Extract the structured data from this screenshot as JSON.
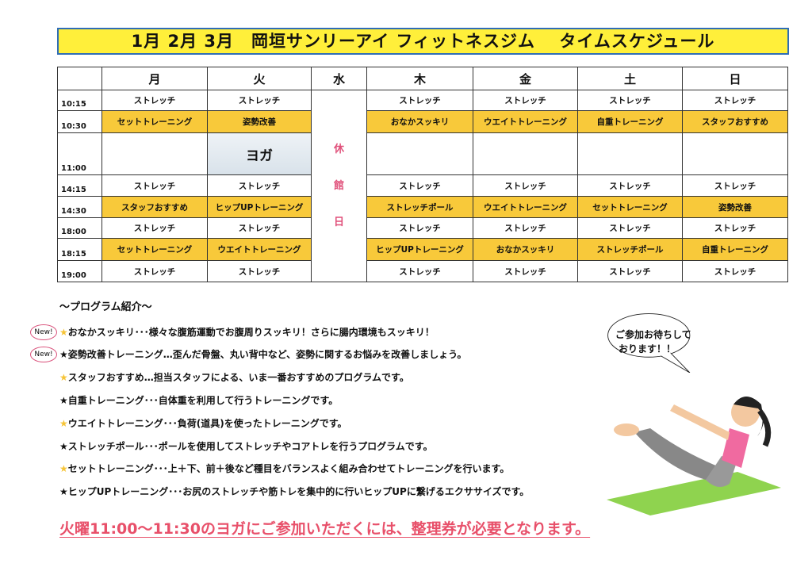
{
  "title": "1月 2月 3月　岡垣サンリーアイ フィットネスジム　 タイムスケジュール",
  "days": [
    "月",
    "火",
    "水",
    "木",
    "金",
    "土",
    "日"
  ],
  "closed_text": [
    "休",
    "館",
    "日"
  ],
  "rows": [
    {
      "time": "10:15",
      "cells": [
        "ストレッチ",
        "ストレッチ",
        "ストレッチ",
        "ストレッチ",
        "ストレッチ",
        "ストレッチ"
      ],
      "highlight": false
    },
    {
      "time": "10:30",
      "cells": [
        "セットトレーニング",
        "姿勢改善",
        "おなかスッキリ",
        "ウエイトトレーニング",
        "自重トレーニング",
        "スタッフおすすめ"
      ],
      "highlight": true
    },
    {
      "time": "11:00",
      "cells": [
        "",
        "ヨガ",
        "",
        "",
        "",
        ""
      ],
      "highlight": false
    },
    {
      "time": "14:15",
      "cells": [
        "ストレッチ",
        "ストレッチ",
        "ストレッチ",
        "ストレッチ",
        "ストレッチ",
        "ストレッチ"
      ],
      "highlight": false
    },
    {
      "time": "14:30",
      "cells": [
        "スタッフおすすめ",
        "ヒップUPトレーニング",
        "ストレッチポール",
        "ウエイトトレーニング",
        "セットトレーニング",
        "姿勢改善"
      ],
      "highlight": true
    },
    {
      "time": "18:00",
      "cells": [
        "ストレッチ",
        "ストレッチ",
        "ストレッチ",
        "ストレッチ",
        "ストレッチ",
        "ストレッチ"
      ],
      "highlight": false
    },
    {
      "time": "18:15",
      "cells": [
        "セットトレーニング",
        "ウエイトトレーニング",
        "ヒップUPトレーニング",
        "おなかスッキリ",
        "ストレッチポール",
        "自重トレーニング"
      ],
      "highlight": true
    },
    {
      "time": "19:00",
      "cells": [
        "ストレッチ",
        "ストレッチ",
        "ストレッチ",
        "ストレッチ",
        "ストレッチ",
        "ストレッチ"
      ],
      "highlight": false
    }
  ],
  "programs_heading": "～プログラム紹介～",
  "new_badge": "New!",
  "programs": [
    {
      "text": "おなかスッキリ･･･様々な腹筋運動でお腹周りスッキリ！さらに腸内環境もスッキリ！",
      "new": true,
      "star_color": "#f6c437"
    },
    {
      "text": "姿勢改善トレーニング…歪んだ骨盤、丸い背中など、姿勢に関するお悩みを改善しましょう。",
      "new": true,
      "star_color": "#111111"
    },
    {
      "text": "スタッフおすすめ…担当スタッフによる、いま一番おすすめのプログラムです。",
      "new": false,
      "star_color": "#f6c437"
    },
    {
      "text": "自重トレーニング･･･自体重を利用して行うトレーニングです。",
      "new": false,
      "star_color": "#111111"
    },
    {
      "text": "ウエイトトレーニング･･･負荷(道具)を使ったトレーニングです。",
      "new": false,
      "star_color": "#f6c437"
    },
    {
      "text": "ストレッチポール･･･ポールを使用してストレッチやコアトレを行うプログラムです。",
      "new": false,
      "star_color": "#111111"
    },
    {
      "text": "セットトレーニング･･･上＋下、前＋後など種目をバランスよく組み合わせてトレーニングを行います。",
      "new": false,
      "star_color": "#f6c437"
    },
    {
      "text": "ヒップUPトレーニング･･･お尻のストレッチや筋トレを集中的に行いヒップUPに繋げるエクササイズです。",
      "new": false,
      "star_color": "#111111"
    }
  ],
  "bubble": [
    "ご参加お待ちして",
    "おります！！"
  ],
  "footer": "火曜11:00～11:30のヨガにご参加いただくには、整理券が必要となります。",
  "colors": {
    "title_bg": "#ffef3a",
    "title_border": "#2f6db5",
    "highlight": "#f8c93a",
    "closed": "#e0507a",
    "footer": "#e8506a"
  }
}
